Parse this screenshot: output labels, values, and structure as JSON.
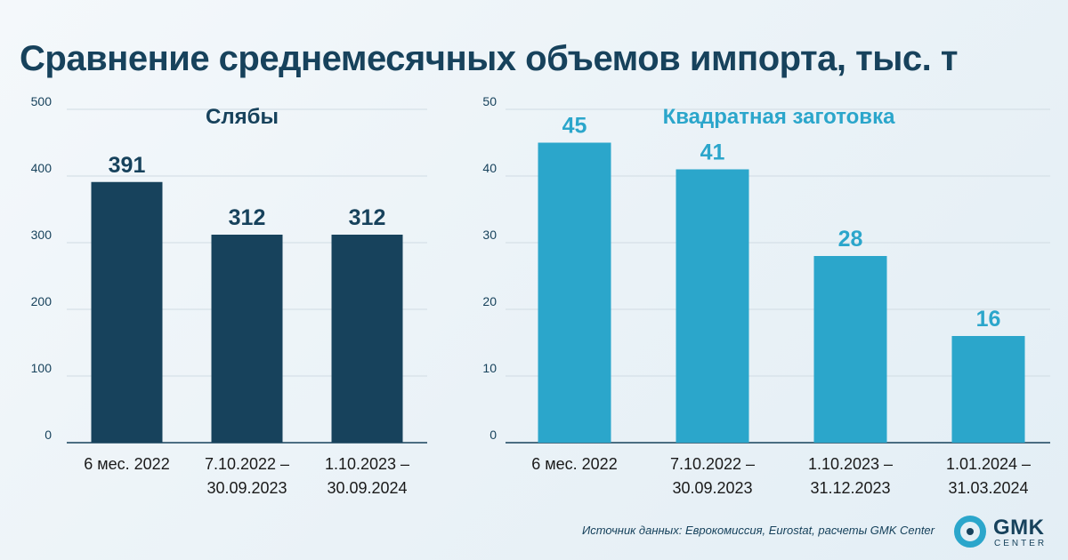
{
  "title": "Сравнение среднемесячных объемов импорта, тыс. т",
  "source": "Источник данных: Еврокомиссия, Eurostat, расчеты GMK Center",
  "logo": {
    "name": "GMK",
    "sub": "CENTER"
  },
  "colors": {
    "title": "#17425c",
    "left_bars": "#17425c",
    "right_bars": "#2ba6cb",
    "grid": "#d0dbe3"
  },
  "chart_data": [
    {
      "type": "bar",
      "title": "Слябы",
      "categories": [
        [
          "6 мес. 2022"
        ],
        [
          "7.10.2022 –",
          "30.09.2023"
        ],
        [
          "1.10.2023 –",
          "30.09.2024"
        ]
      ],
      "values": [
        391,
        312,
        312
      ],
      "ylim": [
        0,
        500
      ],
      "yticks": [
        0,
        100,
        200,
        300,
        400,
        500
      ],
      "grid": true,
      "color": "#17425c"
    },
    {
      "type": "bar",
      "title": "Квадратная заготовка",
      "categories": [
        [
          "6 мес. 2022"
        ],
        [
          "7.10.2022 –",
          "30.09.2023"
        ],
        [
          "1.10.2023 –",
          "31.12.2023"
        ],
        [
          "1.01.2024 –",
          "31.03.2024"
        ]
      ],
      "values": [
        45,
        41,
        28,
        16
      ],
      "ylim": [
        0,
        50
      ],
      "yticks": [
        0,
        10,
        20,
        30,
        40,
        50
      ],
      "grid": true,
      "color": "#2ba6cb"
    }
  ]
}
